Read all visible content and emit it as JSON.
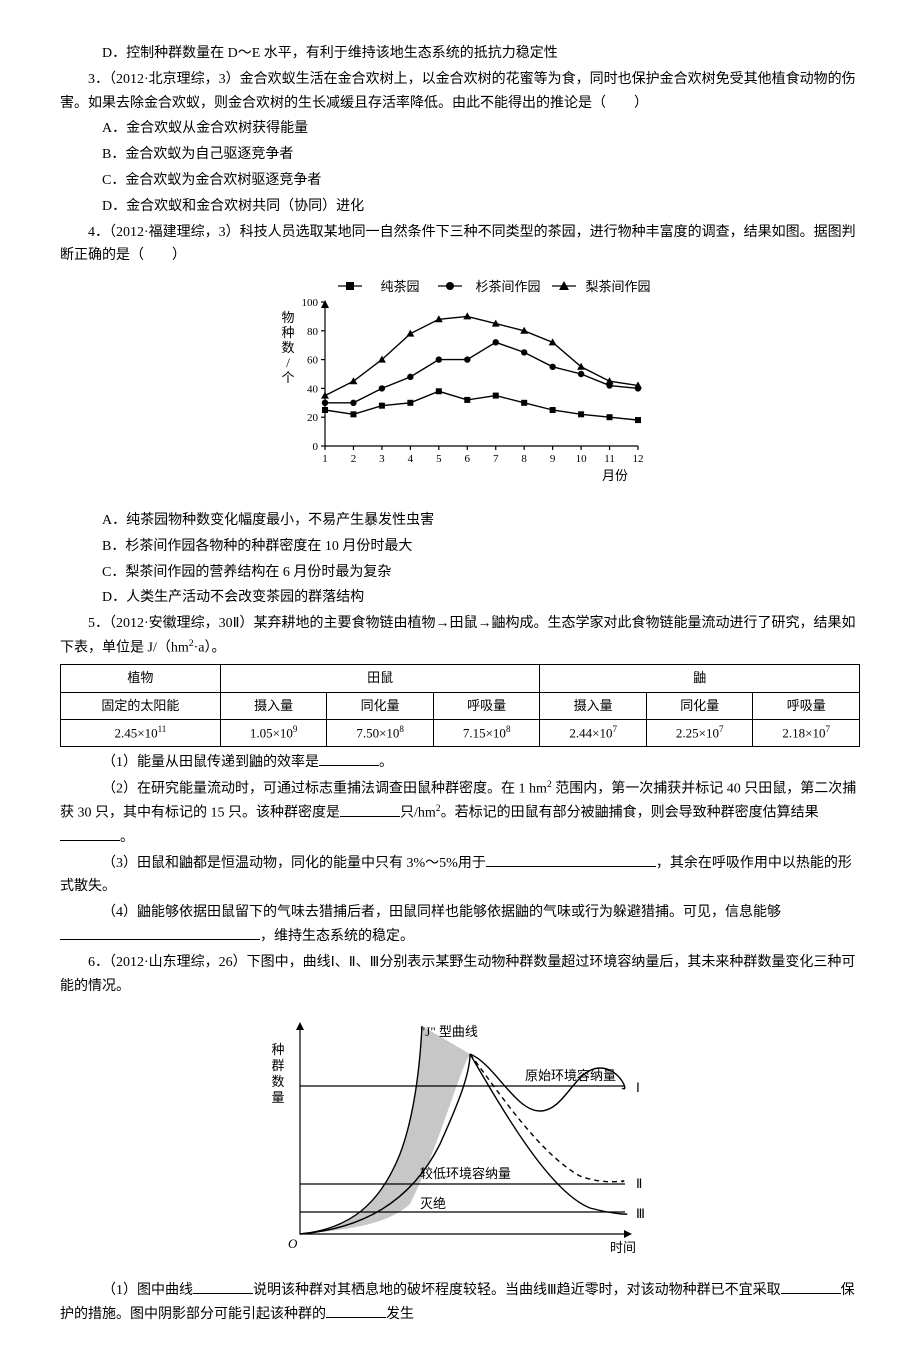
{
  "q2": {
    "optD": "D．控制种群数量在 D～E 水平，有利于维持该地生态系统的抵抗力稳定性"
  },
  "q3": {
    "stem": "3．（2012·北京理综，3）金合欢蚁生活在金合欢树上，以金合欢树的花蜜等为食，同时也保护金合欢树免受其他植食动物的伤害。如果去除金合欢蚁，则金合欢树的生长减缓且存活率降低。由此不能得出的推论是（　　）",
    "optA": "A．金合欢蚁从金合欢树获得能量",
    "optB": "B．金合欢蚁为自己驱逐竞争者",
    "optC": "C．金合欢蚁为金合欢树驱逐竞争者",
    "optD": "D．金合欢蚁和金合欢树共同（协同）进化"
  },
  "q4": {
    "stem": "4．（2012·福建理综，3）科技人员选取某地同一自然条件下三种不同类型的茶园，进行物种丰富度的调查，结果如图。据图判断正确的是（　　）",
    "legend": {
      "a": "纯茶园",
      "b": "杉茶间作园",
      "c": "梨茶间作园"
    },
    "chart": {
      "type": "line",
      "x_label": "月份",
      "y_label": "物种数/个",
      "x_ticks": [
        1,
        2,
        3,
        4,
        5,
        6,
        7,
        8,
        9,
        10,
        11,
        12
      ],
      "y_ticks": [
        0,
        20,
        40,
        60,
        80,
        100
      ],
      "colors": {
        "axis": "#000000",
        "series": "#000000"
      },
      "series": {
        "pure": {
          "marker": "square",
          "y": [
            25,
            22,
            28,
            30,
            38,
            32,
            35,
            30,
            25,
            22,
            20,
            18
          ]
        },
        "fir": {
          "marker": "circle",
          "y": [
            30,
            30,
            40,
            48,
            60,
            60,
            72,
            65,
            55,
            50,
            42,
            40
          ]
        },
        "pear": {
          "marker": "triangle",
          "y": [
            35,
            45,
            60,
            78,
            88,
            90,
            85,
            80,
            72,
            55,
            45,
            42
          ]
        }
      }
    },
    "optA": "A．纯茶园物种数变化幅度最小，不易产生暴发性虫害",
    "optB": "B．杉茶间作园各物种的种群密度在 10 月份时最大",
    "optC": "C．梨茶间作园的营养结构在 6 月份时最为复杂",
    "optD": "D．人类生产活动不会改变茶园的群落结构"
  },
  "q5": {
    "stem_a": "5．（2012·安徽理综，30Ⅱ）某弃耕地的主要食物链由植物→田鼠→鼬构成。生态学家对此食物链能量流动进行了研究，结果如下表，单位是 J/（hm",
    "stem_b": "·a）。",
    "table": {
      "head1": [
        "植物",
        "田鼠",
        "鼬"
      ],
      "head2": [
        "固定的太阳能",
        "摄入量",
        "同化量",
        "呼吸量",
        "摄入量",
        "同化量",
        "呼吸量"
      ],
      "row": [
        "2.45×10",
        "1.05×10",
        "7.50×10",
        "7.15×10",
        "2.44×10",
        "2.25×10",
        "2.18×10"
      ],
      "exps": [
        "11",
        "9",
        "8",
        "8",
        "7",
        "7",
        "7"
      ]
    },
    "p1_a": "（1）能量从田鼠传递到鼬的效率是",
    "p1_b": "。",
    "p2_a": "（2）在研究能量流动时，可通过标志重捕法调查田鼠种群密度。在 1 hm",
    "p2_b": " 范围内，第一次捕获并标记 40 只田鼠，第二次捕获 30 只，其中有标记的 15 只。该种群密度是",
    "p2_c": "只/hm",
    "p2_d": "。若标记的田鼠有部分被鼬捕食，则会导致种群密度估算结果",
    "p2_e": "。",
    "p3_a": "（3）田鼠和鼬都是恒温动物，同化的能量中只有 3%～5%用于",
    "p3_b": "，其余在呼吸作用中以热能的形式散失。",
    "p4_a": "（4）鼬能够依据田鼠留下的气味去猎捕后者，田鼠同样也能够依据鼬的气味或行为躲避猎捕。可见，信息能够",
    "p4_b": "，维持生态系统的稳定。"
  },
  "q6": {
    "stem": "6．（2012·山东理综，26）下图中，曲线Ⅰ、Ⅱ、Ⅲ分别表示某野生动物种群数量超过环境容纳量后，其未来种群数量变化三种可能的情况。",
    "chart": {
      "type": "line-schematic",
      "x_label": "时间",
      "y_label": "种群数量",
      "labels": {
        "j": "\"J\" 型曲线",
        "orig": "原始环境容纳量",
        "low": "较低环境容纳量",
        "ext": "灭绝",
        "I": "Ⅰ",
        "II": "Ⅱ",
        "III": "Ⅲ",
        "O": "O"
      },
      "colors": {
        "axis": "#000000",
        "line": "#000000",
        "shade": "#c7c7c7"
      }
    },
    "p1_a": "（1）图中曲线",
    "p1_b": "说明该种群对其栖息地的破坏程度较轻。当曲线Ⅲ趋近零时，对该动物种群已不宜采取",
    "p1_c": "保护的措施。图中阴影部分可能引起该种群的",
    "p1_d": "发生"
  }
}
